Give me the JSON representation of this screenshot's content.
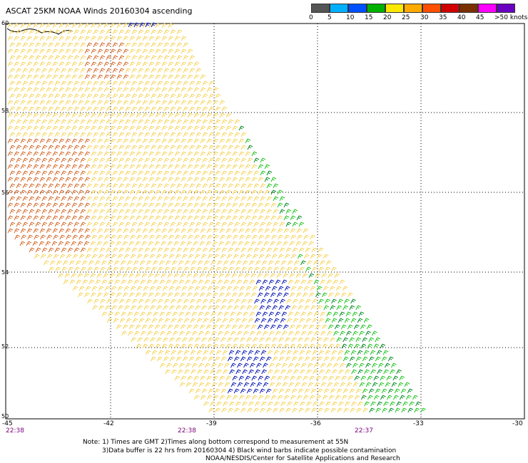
{
  "title": "ASCAT 25KM NOAA Winds 20160304 ascending",
  "legend": {
    "colors": [
      "#555555",
      "#00b0ff",
      "#0050ff",
      "#00b000",
      "#ffe800",
      "#ffaa00",
      "#ff5000",
      "#d00000",
      "#7a3000",
      "#ff00ff",
      "#6a00c0"
    ],
    "labels": [
      "0",
      "5",
      "10",
      "15",
      "20",
      "25",
      "30",
      "35",
      "40",
      "45",
      ">50 knots"
    ]
  },
  "axes": {
    "lat_labels": [
      "60",
      "58",
      "56",
      "54",
      "52",
      "50"
    ],
    "lon_labels": [
      "-45",
      "-42",
      "-39",
      "-36",
      "-33",
      "-30"
    ],
    "times": [
      "22:38",
      "22:38",
      "22:37"
    ]
  },
  "notes": {
    "line1": "Note: 1) Times are GMT 2)Times along bottom correspond to measurement at 55N",
    "line2": "3)Data buffer is 22 hrs from 20160304 4) Black wind barbs indicate possible contamination",
    "line3": "NOAA/NESDIS/Center for Satellite Applications and Research"
  },
  "swath_colors": {
    "orange": "#d2692a",
    "yellow": "#f5d35a",
    "green_dark": "#0a8a2a",
    "green": "#22c422",
    "blue": "#0a1ab0"
  }
}
